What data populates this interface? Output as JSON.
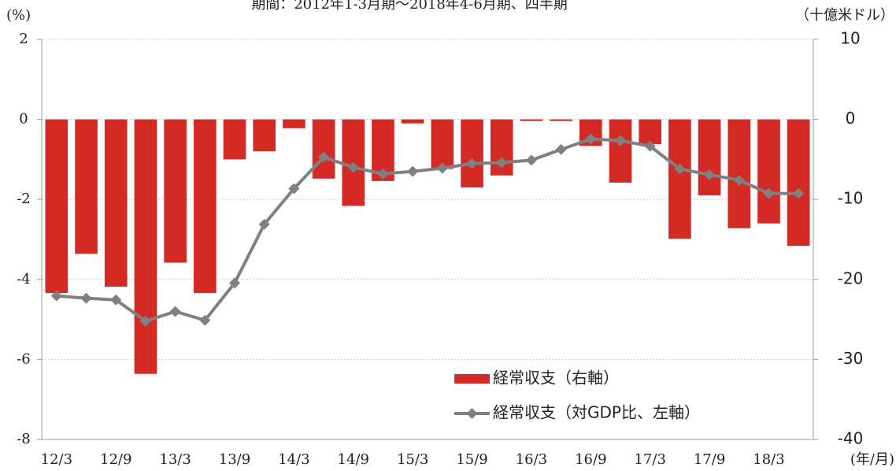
{
  "chart_data": {
    "type": "combo",
    "title": "期間：2012年1-3月期～2018年4-6月期、四半期",
    "y_label": "(%)",
    "y2_label": "（十億米ドル）",
    "x_label": "(年/月)",
    "categories": [
      "12/3",
      null,
      "12/9",
      null,
      "13/3",
      null,
      "13/9",
      null,
      "14/3",
      null,
      "14/9",
      null,
      "15/3",
      null,
      "15/9",
      null,
      "16/3",
      null,
      "16/9",
      null,
      "17/3",
      null,
      "17/9",
      null,
      "18/3",
      null
    ],
    "series": [
      {
        "name": "経常収支（右軸）",
        "type": "bar",
        "axis": "y2",
        "color": "#d42a25",
        "values": [
          -21.7,
          -16.8,
          -20.9,
          -31.8,
          -17.9,
          -21.7,
          -5.0,
          -4.0,
          -1.1,
          -7.4,
          -10.8,
          -7.7,
          -0.5,
          -6.2,
          -8.5,
          -7.0,
          -0.2,
          -0.2,
          -3.3,
          -7.9,
          -3.1,
          -14.9,
          -9.5,
          -13.6,
          -13.0,
          -15.8
        ]
      },
      {
        "name": "経常収支（対GDP比、左軸）",
        "type": "line",
        "color": "#808080",
        "values": [
          -4.41,
          -4.47,
          -4.51,
          -5.04,
          -4.8,
          -5.02,
          -4.09,
          -2.62,
          -1.73,
          -0.94,
          -1.2,
          -1.36,
          -1.3,
          -1.22,
          -1.1,
          -1.08,
          -1.02,
          -0.75,
          -0.49,
          -0.53,
          -0.67,
          -1.24,
          -1.38,
          -1.52,
          -1.85,
          -1.85
        ]
      }
    ],
    "ylim": [
      -8,
      2
    ],
    "yticks": [
      -8,
      -6,
      -4,
      -2,
      0,
      2
    ],
    "y2lim": [
      -40,
      10
    ],
    "y2ticks": [
      -40,
      -30,
      -20,
      -10,
      0,
      10
    ],
    "grid": true
  }
}
